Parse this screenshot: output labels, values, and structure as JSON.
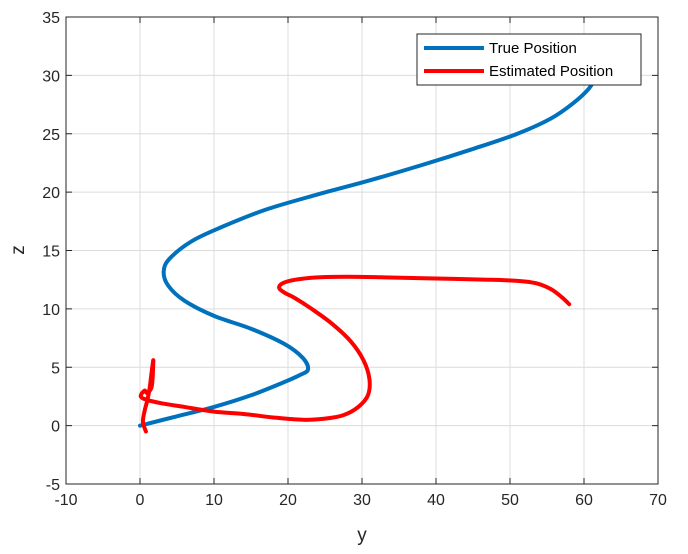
{
  "chart_data": {
    "type": "line",
    "xlabel": "y",
    "ylabel": "z",
    "xlim": [
      -10,
      70
    ],
    "ylim": [
      -5,
      35
    ],
    "x_ticks": [
      -10,
      0,
      10,
      20,
      30,
      40,
      50,
      60,
      70
    ],
    "y_ticks": [
      -5,
      0,
      5,
      10,
      15,
      20,
      25,
      30,
      35
    ],
    "grid": true,
    "legend_position": "top-right",
    "series": [
      {
        "name": "True Position",
        "color": "#0072bd",
        "x": [
          0,
          5,
          10,
          15,
          19,
          21.5,
          22.7,
          22,
          19.5,
          15,
          10,
          6,
          3.8,
          3.2,
          4,
          7,
          11,
          17,
          24,
          31,
          38,
          45,
          51,
          55.5,
          58.5,
          60.7,
          62
        ],
        "y": [
          0,
          0.8,
          1.6,
          2.6,
          3.6,
          4.3,
          4.8,
          5.8,
          7,
          8.3,
          9.4,
          10.7,
          12,
          13.2,
          14.3,
          15.8,
          17,
          18.5,
          19.8,
          21,
          22.3,
          23.7,
          25,
          26.3,
          27.6,
          28.9,
          30.3
        ]
      },
      {
        "name": "Estimated Position",
        "color": "#ff0000",
        "x": [
          0.8,
          0.4,
          0.6,
          1.0,
          1.3,
          1.5,
          1.7,
          1.8,
          1.6,
          1.0,
          0.6,
          0.1,
          1.0,
          3,
          6,
          10,
          14,
          18,
          22,
          25,
          27.5,
          29.5,
          30.8,
          31,
          30.2,
          28.5,
          26,
          23.2,
          21,
          19.5,
          18.8,
          19.3,
          21,
          24,
          28,
          33,
          40,
          47,
          51,
          53.5,
          55.5,
          57,
          58
        ],
        "y": [
          -0.5,
          0.3,
          1.2,
          2.2,
          3.2,
          4.2,
          5.2,
          5.5,
          3.4,
          2.8,
          3.0,
          2.5,
          2.2,
          1.9,
          1.6,
          1.2,
          1.0,
          0.7,
          0.5,
          0.6,
          0.9,
          1.6,
          2.6,
          4.0,
          5.6,
          7.2,
          8.7,
          10.0,
          10.9,
          11.4,
          11.8,
          12.2,
          12.5,
          12.7,
          12.75,
          12.7,
          12.6,
          12.5,
          12.4,
          12.2,
          11.7,
          11.0,
          10.4
        ]
      }
    ]
  }
}
